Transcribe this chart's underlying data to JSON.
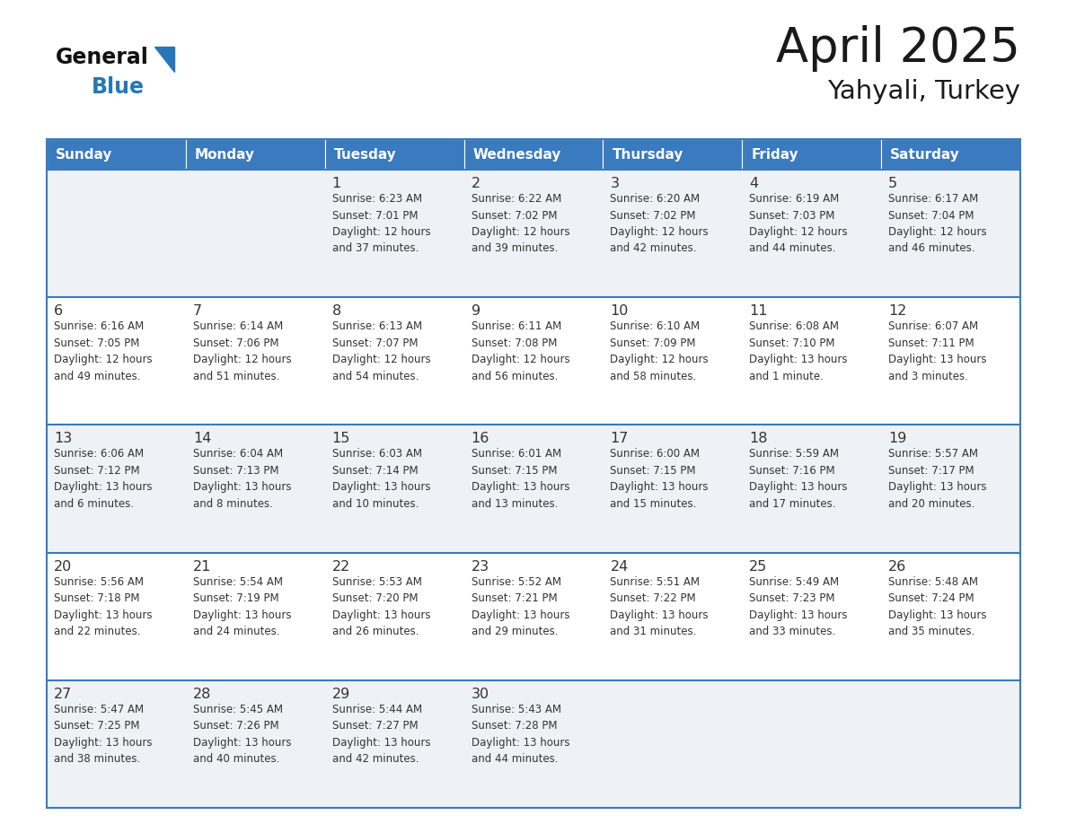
{
  "title": "April 2025",
  "subtitle": "Yahyali, Turkey",
  "header_bg": "#3a7abf",
  "header_text": "#ffffff",
  "row_bg": "#eef2f7",
  "row_bg_white": "#ffffff",
  "border_color": "#3a7abf",
  "text_color": "#333333",
  "day_names": [
    "Sunday",
    "Monday",
    "Tuesday",
    "Wednesday",
    "Thursday",
    "Friday",
    "Saturday"
  ],
  "calendar": [
    [
      {
        "day": null,
        "text": ""
      },
      {
        "day": null,
        "text": ""
      },
      {
        "day": 1,
        "text": "Sunrise: 6:23 AM\nSunset: 7:01 PM\nDaylight: 12 hours\nand 37 minutes."
      },
      {
        "day": 2,
        "text": "Sunrise: 6:22 AM\nSunset: 7:02 PM\nDaylight: 12 hours\nand 39 minutes."
      },
      {
        "day": 3,
        "text": "Sunrise: 6:20 AM\nSunset: 7:02 PM\nDaylight: 12 hours\nand 42 minutes."
      },
      {
        "day": 4,
        "text": "Sunrise: 6:19 AM\nSunset: 7:03 PM\nDaylight: 12 hours\nand 44 minutes."
      },
      {
        "day": 5,
        "text": "Sunrise: 6:17 AM\nSunset: 7:04 PM\nDaylight: 12 hours\nand 46 minutes."
      }
    ],
    [
      {
        "day": 6,
        "text": "Sunrise: 6:16 AM\nSunset: 7:05 PM\nDaylight: 12 hours\nand 49 minutes."
      },
      {
        "day": 7,
        "text": "Sunrise: 6:14 AM\nSunset: 7:06 PM\nDaylight: 12 hours\nand 51 minutes."
      },
      {
        "day": 8,
        "text": "Sunrise: 6:13 AM\nSunset: 7:07 PM\nDaylight: 12 hours\nand 54 minutes."
      },
      {
        "day": 9,
        "text": "Sunrise: 6:11 AM\nSunset: 7:08 PM\nDaylight: 12 hours\nand 56 minutes."
      },
      {
        "day": 10,
        "text": "Sunrise: 6:10 AM\nSunset: 7:09 PM\nDaylight: 12 hours\nand 58 minutes."
      },
      {
        "day": 11,
        "text": "Sunrise: 6:08 AM\nSunset: 7:10 PM\nDaylight: 13 hours\nand 1 minute."
      },
      {
        "day": 12,
        "text": "Sunrise: 6:07 AM\nSunset: 7:11 PM\nDaylight: 13 hours\nand 3 minutes."
      }
    ],
    [
      {
        "day": 13,
        "text": "Sunrise: 6:06 AM\nSunset: 7:12 PM\nDaylight: 13 hours\nand 6 minutes."
      },
      {
        "day": 14,
        "text": "Sunrise: 6:04 AM\nSunset: 7:13 PM\nDaylight: 13 hours\nand 8 minutes."
      },
      {
        "day": 15,
        "text": "Sunrise: 6:03 AM\nSunset: 7:14 PM\nDaylight: 13 hours\nand 10 minutes."
      },
      {
        "day": 16,
        "text": "Sunrise: 6:01 AM\nSunset: 7:15 PM\nDaylight: 13 hours\nand 13 minutes."
      },
      {
        "day": 17,
        "text": "Sunrise: 6:00 AM\nSunset: 7:15 PM\nDaylight: 13 hours\nand 15 minutes."
      },
      {
        "day": 18,
        "text": "Sunrise: 5:59 AM\nSunset: 7:16 PM\nDaylight: 13 hours\nand 17 minutes."
      },
      {
        "day": 19,
        "text": "Sunrise: 5:57 AM\nSunset: 7:17 PM\nDaylight: 13 hours\nand 20 minutes."
      }
    ],
    [
      {
        "day": 20,
        "text": "Sunrise: 5:56 AM\nSunset: 7:18 PM\nDaylight: 13 hours\nand 22 minutes."
      },
      {
        "day": 21,
        "text": "Sunrise: 5:54 AM\nSunset: 7:19 PM\nDaylight: 13 hours\nand 24 minutes."
      },
      {
        "day": 22,
        "text": "Sunrise: 5:53 AM\nSunset: 7:20 PM\nDaylight: 13 hours\nand 26 minutes."
      },
      {
        "day": 23,
        "text": "Sunrise: 5:52 AM\nSunset: 7:21 PM\nDaylight: 13 hours\nand 29 minutes."
      },
      {
        "day": 24,
        "text": "Sunrise: 5:51 AM\nSunset: 7:22 PM\nDaylight: 13 hours\nand 31 minutes."
      },
      {
        "day": 25,
        "text": "Sunrise: 5:49 AM\nSunset: 7:23 PM\nDaylight: 13 hours\nand 33 minutes."
      },
      {
        "day": 26,
        "text": "Sunrise: 5:48 AM\nSunset: 7:24 PM\nDaylight: 13 hours\nand 35 minutes."
      }
    ],
    [
      {
        "day": 27,
        "text": "Sunrise: 5:47 AM\nSunset: 7:25 PM\nDaylight: 13 hours\nand 38 minutes."
      },
      {
        "day": 28,
        "text": "Sunrise: 5:45 AM\nSunset: 7:26 PM\nDaylight: 13 hours\nand 40 minutes."
      },
      {
        "day": 29,
        "text": "Sunrise: 5:44 AM\nSunset: 7:27 PM\nDaylight: 13 hours\nand 42 minutes."
      },
      {
        "day": 30,
        "text": "Sunrise: 5:43 AM\nSunset: 7:28 PM\nDaylight: 13 hours\nand 44 minutes."
      },
      {
        "day": null,
        "text": ""
      },
      {
        "day": null,
        "text": ""
      },
      {
        "day": null,
        "text": ""
      }
    ]
  ]
}
